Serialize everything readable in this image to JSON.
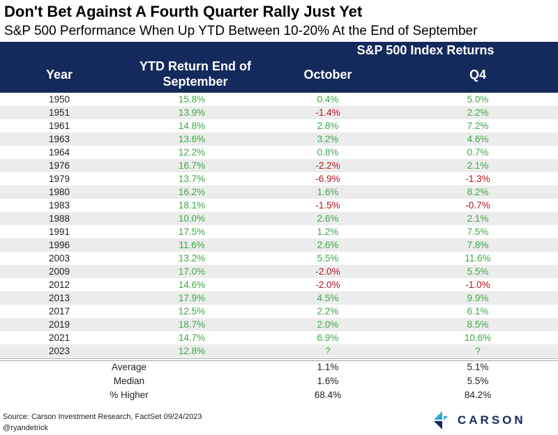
{
  "title": "Don't Bet Against A Fourth Quarter Rally Just Yet",
  "subtitle": "S&P 500 Performance When Up YTD Between 10-20% At the End of September",
  "header": {
    "group": "S&P 500 Index Returns",
    "year": "Year",
    "ytd": "YTD Return End of September",
    "october": "October",
    "q4": "Q4"
  },
  "rows": [
    {
      "year": "1950",
      "ytd": "15.8%",
      "oct": "0.4%",
      "q4": "5.0%"
    },
    {
      "year": "1951",
      "ytd": "13.9%",
      "oct": "-1.4%",
      "q4": "2.2%"
    },
    {
      "year": "1961",
      "ytd": "14.8%",
      "oct": "2.8%",
      "q4": "7.2%"
    },
    {
      "year": "1963",
      "ytd": "13.6%",
      "oct": "3.2%",
      "q4": "4.6%"
    },
    {
      "year": "1964",
      "ytd": "12.2%",
      "oct": "0.8%",
      "q4": "0.7%"
    },
    {
      "year": "1976",
      "ytd": "16.7%",
      "oct": "-2.2%",
      "q4": "2.1%"
    },
    {
      "year": "1979",
      "ytd": "13.7%",
      "oct": "-6.9%",
      "q4": "-1.3%"
    },
    {
      "year": "1980",
      "ytd": "16.2%",
      "oct": "1.6%",
      "q4": "8.2%"
    },
    {
      "year": "1983",
      "ytd": "18.1%",
      "oct": "-1.5%",
      "q4": "-0.7%"
    },
    {
      "year": "1988",
      "ytd": "10.0%",
      "oct": "2.6%",
      "q4": "2.1%"
    },
    {
      "year": "1991",
      "ytd": "17.5%",
      "oct": "1.2%",
      "q4": "7.5%"
    },
    {
      "year": "1996",
      "ytd": "11.6%",
      "oct": "2.6%",
      "q4": "7.8%"
    },
    {
      "year": "2003",
      "ytd": "13.2%",
      "oct": "5.5%",
      "q4": "11.6%"
    },
    {
      "year": "2009",
      "ytd": "17.0%",
      "oct": "-2.0%",
      "q4": "5.5%"
    },
    {
      "year": "2012",
      "ytd": "14.6%",
      "oct": "-2.0%",
      "q4": "-1.0%"
    },
    {
      "year": "2013",
      "ytd": "17.9%",
      "oct": "4.5%",
      "q4": "9.9%"
    },
    {
      "year": "2017",
      "ytd": "12.5%",
      "oct": "2.2%",
      "q4": "6.1%"
    },
    {
      "year": "2019",
      "ytd": "18.7%",
      "oct": "2.0%",
      "q4": "8.5%"
    },
    {
      "year": "2021",
      "ytd": "14.7%",
      "oct": "6.9%",
      "q4": "10.6%"
    },
    {
      "year": "2023",
      "ytd": "12.8%",
      "oct": "?",
      "q4": "?"
    }
  ],
  "summary": [
    {
      "label": "Average",
      "oct": "1.1%",
      "q4": "5.1%"
    },
    {
      "label": "Median",
      "oct": "1.6%",
      "q4": "5.5%"
    },
    {
      "label": "% Higher",
      "oct": "68.4%",
      "q4": "84.2%"
    }
  ],
  "source": "Source: Carson Investment Research, FactSet 09/24/2023",
  "handle": "@ryandetrick",
  "logo_text": "CARSON",
  "colors": {
    "header_bg": "#142a5c",
    "positive": "#3aa845",
    "negative": "#b5121b",
    "stripe": "#ececec"
  },
  "icons": {
    "logo": "carson-chevron-icon"
  }
}
